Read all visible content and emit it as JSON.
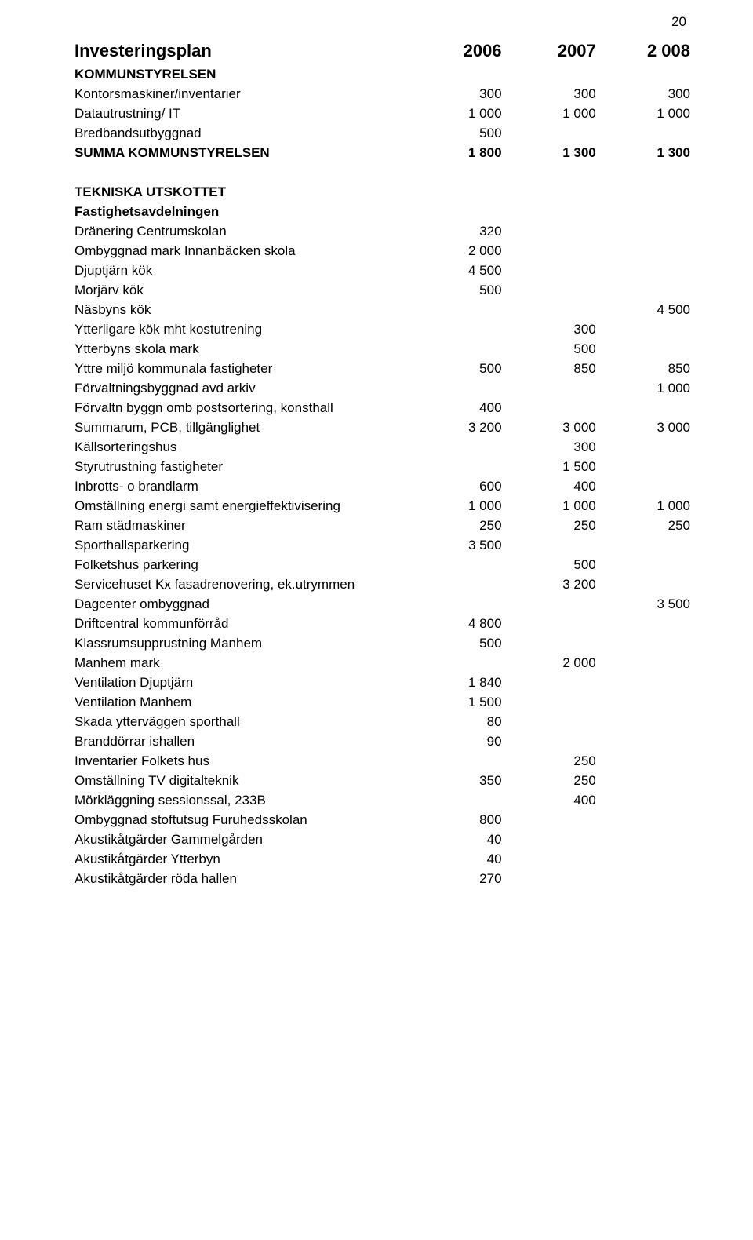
{
  "page_number": "20",
  "font": {
    "body_size_pt": 13,
    "heading_size_pt": 16,
    "color": "#000000",
    "family": "Arial"
  },
  "background_color": "#ffffff",
  "columns": {
    "label_width_pct": 54,
    "num_width_pct": 15.3,
    "alignment": [
      "left",
      "right",
      "right",
      "right"
    ]
  },
  "rows": [
    {
      "type": "heading",
      "label": "Investeringsplan",
      "c1": "2006",
      "c2": "2007",
      "c3": "2 008"
    },
    {
      "bold": true,
      "label": "KOMMUNSTYRELSEN",
      "c1": "",
      "c2": "",
      "c3": ""
    },
    {
      "label": "Kontorsmaskiner/inventarier",
      "c1": "300",
      "c2": "300",
      "c3": "300"
    },
    {
      "label": "Datautrustning/ IT",
      "c1": "1 000",
      "c2": "1 000",
      "c3": "1 000"
    },
    {
      "label": "Bredbandsutbyggnad",
      "c1": "500",
      "c2": "",
      "c3": ""
    },
    {
      "bold": true,
      "label": "SUMMA KOMMUNSTYRELSEN",
      "c1": "1 800",
      "c2": "1 300",
      "c3": "1 300"
    },
    {
      "type": "spacer"
    },
    {
      "bold": true,
      "label": "TEKNISKA UTSKOTTET",
      "c1": "",
      "c2": "",
      "c3": ""
    },
    {
      "bold": true,
      "label": "Fastighetsavdelningen",
      "c1": "",
      "c2": "",
      "c3": ""
    },
    {
      "label": "Dränering Centrumskolan",
      "c1": "320",
      "c2": "",
      "c3": ""
    },
    {
      "label": "Ombyggnad mark Innanbäcken skola",
      "c1": "2 000",
      "c2": "",
      "c3": ""
    },
    {
      "label": "Djuptjärn kök",
      "c1": "4 500",
      "c2": "",
      "c3": ""
    },
    {
      "label": "Morjärv kök",
      "c1": "500",
      "c2": "",
      "c3": ""
    },
    {
      "label": "Näsbyns kök",
      "c1": "",
      "c2": "",
      "c3": "4 500"
    },
    {
      "label": "Ytterligare kök mht kostutrening",
      "c1": "",
      "c2": "300",
      "c3": ""
    },
    {
      "label": "Ytterbyns skola mark",
      "c1": "",
      "c2": "500",
      "c3": ""
    },
    {
      "label": "Yttre miljö kommunala fastigheter",
      "c1": "500",
      "c2": "850",
      "c3": "850"
    },
    {
      "label": "Förvaltningsbyggnad avd arkiv",
      "c1": "",
      "c2": "",
      "c3": "1 000"
    },
    {
      "label": "Förvaltn byggn omb postsortering, konsthall",
      "c1": "400",
      "c2": "",
      "c3": ""
    },
    {
      "label": "Summarum, PCB, tillgänglighet",
      "c1": "3 200",
      "c2": "3 000",
      "c3": "3 000"
    },
    {
      "label": "Källsorteringshus",
      "c1": "",
      "c2": "300",
      "c3": ""
    },
    {
      "label": "Styrutrustning fastigheter",
      "c1": "",
      "c2": "1 500",
      "c3": ""
    },
    {
      "label": "Inbrotts- o brandlarm",
      "c1": "600",
      "c2": "400",
      "c3": ""
    },
    {
      "label": "Omställning energi samt energieffektivisering",
      "c1": "1 000",
      "c2": "1 000",
      "c3": "1 000"
    },
    {
      "label": "Ram städmaskiner",
      "c1": "250",
      "c2": "250",
      "c3": "250"
    },
    {
      "label": "Sporthallsparkering",
      "c1": "3 500",
      "c2": "",
      "c3": ""
    },
    {
      "label": "Folketshus parkering",
      "c1": "",
      "c2": "500",
      "c3": ""
    },
    {
      "label": "Servicehuset  Kx fasadrenovering, ek.utrymmen",
      "c1": "",
      "c2": "3 200",
      "c3": ""
    },
    {
      "label": "Dagcenter ombyggnad",
      "c1": "",
      "c2": "",
      "c3": "3 500"
    },
    {
      "label": "Driftcentral kommunförråd",
      "c1": "4 800",
      "c2": "",
      "c3": ""
    },
    {
      "label": "Klassrumsupprustning Manhem",
      "c1": "500",
      "c2": "",
      "c3": ""
    },
    {
      "label": "Manhem mark",
      "c1": "",
      "c2": "2 000",
      "c3": ""
    },
    {
      "label": "Ventilation Djuptjärn",
      "c1": "1 840",
      "c2": "",
      "c3": ""
    },
    {
      "label": "Ventilation Manhem",
      "c1": "1 500",
      "c2": "",
      "c3": ""
    },
    {
      "label": "Skada ytterväggen sporthall",
      "c1": "80",
      "c2": "",
      "c3": ""
    },
    {
      "label": "Branddörrar ishallen",
      "c1": "90",
      "c2": "",
      "c3": ""
    },
    {
      "label": "Inventarier Folkets hus",
      "c1": "",
      "c2": "250",
      "c3": ""
    },
    {
      "label": "Omställning TV digitalteknik",
      "c1": "350",
      "c2": "250",
      "c3": ""
    },
    {
      "label": "Mörkläggning sessionssal, 233B",
      "c1": "",
      "c2": "400",
      "c3": ""
    },
    {
      "label": "Ombyggnad stoftutsug Furuhedsskolan",
      "c1": "800",
      "c2": "",
      "c3": ""
    },
    {
      "label": "Akustikåtgärder Gammelgården",
      "c1": "40",
      "c2": "",
      "c3": ""
    },
    {
      "label": "Akustikåtgärder Ytterbyn",
      "c1": "40",
      "c2": "",
      "c3": ""
    },
    {
      "label": "Akustikåtgärder röda hallen",
      "c1": "270",
      "c2": "",
      "c3": ""
    }
  ]
}
